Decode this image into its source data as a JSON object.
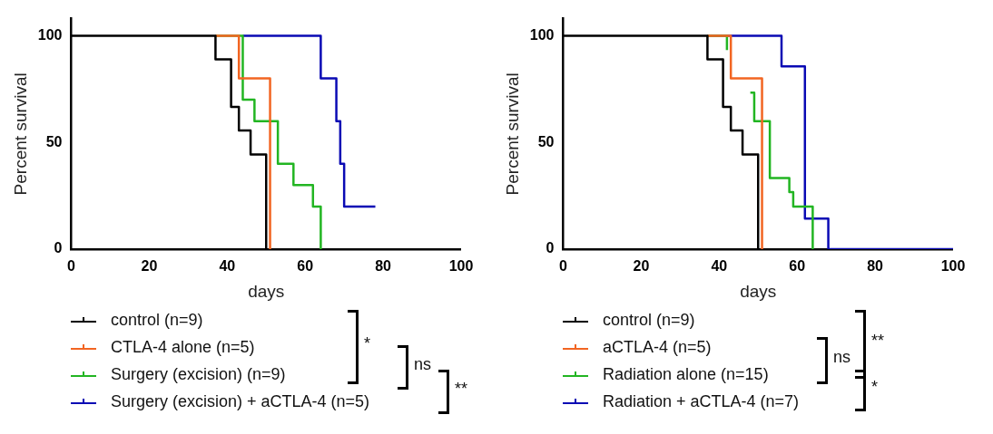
{
  "chart_data": [
    {
      "type": "step",
      "xlabel": "days",
      "ylabel": "Percent survival",
      "xlim": [
        0,
        100
      ],
      "xticks": [
        0,
        20,
        40,
        60,
        80,
        100
      ],
      "ylim": [
        0,
        108
      ],
      "yticks": [
        0,
        50,
        100
      ],
      "grid": false,
      "legend": "bottom",
      "marker": "none",
      "series": [
        {
          "name": "control (n=9)",
          "color": "#000000",
          "x": [
            0,
            37,
            41,
            43,
            46,
            50
          ],
          "values": [
            100,
            88.9,
            66.7,
            55.6,
            44.4,
            0
          ]
        },
        {
          "name": "CTLA-4 alone (n=5)",
          "color": "#f26522",
          "x": [
            37,
            43,
            51
          ],
          "values": [
            100,
            80,
            0
          ]
        },
        {
          "name": "Surgery (excision) (n=9)",
          "color": "#22b522",
          "x": [
            37,
            44,
            47,
            53,
            57,
            62,
            64
          ],
          "values": [
            100,
            70,
            60,
            40,
            30,
            20,
            0
          ]
        },
        {
          "name": "Surgery (excision) + aCTLA-4 (n=5)",
          "color": "#0a0ab4",
          "x": [
            44,
            64,
            68,
            69,
            70,
            78
          ],
          "values": [
            100,
            80,
            60,
            40,
            20,
            20
          ]
        }
      ],
      "annotations": [
        "*",
        "ns",
        "**"
      ]
    },
    {
      "type": "step",
      "xlabel": "days",
      "ylabel": "Percent survival",
      "xlim": [
        0,
        100
      ],
      "xticks": [
        0,
        20,
        40,
        60,
        80,
        100
      ],
      "ylim": [
        0,
        108
      ],
      "yticks": [
        0,
        50,
        100
      ],
      "grid": false,
      "legend": "bottom",
      "marker": "none",
      "series": [
        {
          "name": "control (n=9)",
          "color": "#000000",
          "x": [
            0,
            37,
            41,
            43,
            46,
            50
          ],
          "values": [
            100,
            88.9,
            66.7,
            55.6,
            44.4,
            0
          ]
        },
        {
          "name": "aCTLA-4 (n=5)",
          "color": "#f26522",
          "x": [
            37,
            43,
            51
          ],
          "values": [
            100,
            80,
            0
          ]
        },
        {
          "name": "Radiation alone (n=15)",
          "color": "#22b522",
          "x": [
            37,
            42,
            43,
            48,
            49,
            53,
            58,
            59,
            64
          ],
          "values": [
            100,
            93.3,
            null,
            73.3,
            60,
            33.3,
            26.7,
            20,
            0
          ]
        },
        {
          "name": "Radiation + aCTLA-4 (n=7)",
          "color": "#0a0ab4",
          "x": [
            37,
            56,
            62,
            68,
            100
          ],
          "values": [
            100,
            85.7,
            14.3,
            0,
            0
          ]
        }
      ],
      "annotations": [
        "ns",
        "**",
        "*"
      ]
    }
  ]
}
